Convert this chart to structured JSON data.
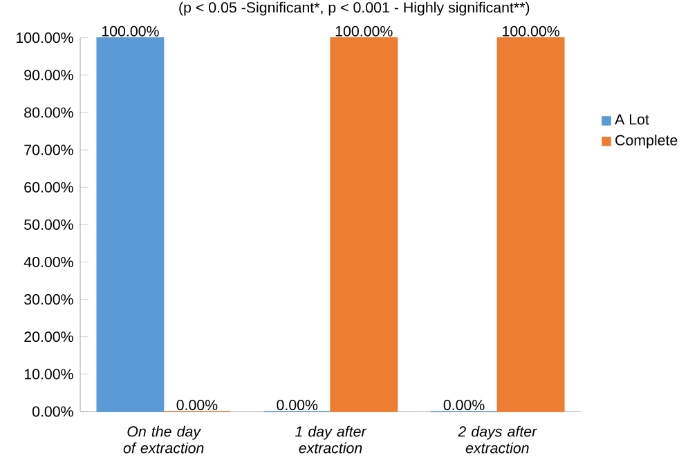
{
  "chart_data": {
    "type": "bar",
    "title": "(p < 0.05 -Significant*, p < 0.001 - Highly significant**)",
    "categories": [
      "On the day of extraction",
      "1 day after extraction",
      "2 days after extraction"
    ],
    "series": [
      {
        "name": "A Lot",
        "color": "#5b9bd5",
        "values": [
          100,
          0,
          0
        ],
        "value_labels": [
          "100.00%",
          "0.00%",
          "0.00%"
        ]
      },
      {
        "name": "Complete",
        "color": "#ed7d31",
        "values": [
          0,
          100,
          100
        ],
        "value_labels": [
          "0.00%",
          "100.00%",
          "100.00%"
        ]
      }
    ],
    "ylim": [
      0,
      100
    ],
    "yticks": [
      {
        "value": 0,
        "label": "0.00%"
      },
      {
        "value": 10,
        "label": "10.00%"
      },
      {
        "value": 20,
        "label": "20.00%"
      },
      {
        "value": 30,
        "label": "30.00%"
      },
      {
        "value": 40,
        "label": "40.00%"
      },
      {
        "value": 50,
        "label": "50.00%"
      },
      {
        "value": 60,
        "label": "60.00%"
      },
      {
        "value": 70,
        "label": "70.00%"
      },
      {
        "value": 80,
        "label": "80.00%"
      },
      {
        "value": 90,
        "label": "90.00%"
      },
      {
        "value": 100,
        "label": "100.00%"
      }
    ],
    "legend": "right"
  }
}
